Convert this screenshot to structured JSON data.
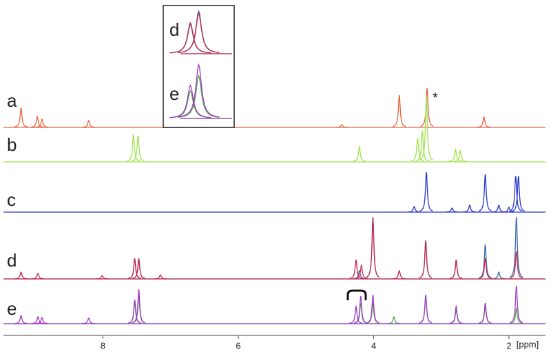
{
  "chart_data": {
    "type": "spectrum",
    "xlabel": "[ppm]",
    "xlim": [
      9.47,
      1.46
    ],
    "xticks": [
      8,
      6,
      4,
      2
    ],
    "annotation": "*",
    "series": [
      {
        "name": "a",
        "lines": [
          {
            "color": "#e8603c",
            "x": [
              9.21,
              8.97,
              8.9,
              8.21,
              4.47,
              3.62,
              3.21,
              2.37
            ],
            "values": [
              28,
              16,
              12,
              10,
              4,
              47,
              57,
              15
            ]
          }
        ]
      },
      {
        "name": "b",
        "lines": [
          {
            "color": "#9ee34a",
            "x": [
              7.55,
              7.48,
              4.21,
              3.35,
              3.28,
              3.22,
              2.79,
              2.72
            ],
            "values": [
              40,
              38,
              22,
              35,
              45,
              95,
              18,
              16
            ]
          }
        ]
      },
      {
        "name": "c",
        "lines": [
          {
            "color": "#2433c8",
            "x": [
              3.4,
              3.22,
              2.84,
              2.58,
              2.35,
              2.15,
              2.0,
              1.9,
              1.86
            ],
            "values": [
              8,
              58,
              6,
              10,
              55,
              10,
              7,
              52,
              52
            ]
          }
        ]
      },
      {
        "name": "d",
        "lines": [
          {
            "color": "#3868a8",
            "x": [
              7.53,
              7.47,
              4.21,
              4.01,
              3.23,
              2.78,
              2.35,
              2.15,
              1.89
            ],
            "values": [
              28,
              28,
              12,
              90,
              56,
              25,
              50,
              10,
              90
            ]
          },
          {
            "color": "#c8284a",
            "x": [
              9.21,
              8.96,
              8.01,
              7.53,
              7.47,
              7.15,
              4.26,
              4.18,
              4.01,
              3.62,
              3.23,
              2.78,
              2.35,
              1.89
            ],
            "values": [
              10,
              8,
              5,
              30,
              30,
              6,
              28,
              20,
              88,
              12,
              55,
              28,
              30,
              40
            ]
          }
        ]
      },
      {
        "name": "e",
        "lines": [
          {
            "color": "#50a848",
            "x": [
              7.53,
              7.47,
              4.19,
              4.01,
              3.7,
              3.23,
              2.78,
              2.35,
              1.89
            ],
            "values": [
              30,
              40,
              30,
              30,
              10,
              38,
              20,
              25,
              22
            ]
          },
          {
            "color": "#a038c8",
            "x": [
              9.21,
              8.96,
              8.9,
              8.21,
              7.53,
              7.47,
              4.26,
              4.19,
              4.01,
              3.23,
              2.78,
              2.35,
              1.89
            ],
            "values": [
              12,
              10,
              9,
              8,
              35,
              50,
              25,
              40,
              42,
              42,
              25,
              30,
              55
            ]
          }
        ]
      }
    ],
    "inset": {
      "xlim": [
        3.9,
        3.5
      ],
      "series": [
        {
          "name": "d",
          "lines": [
            {
              "color": "#3868a8",
              "x": [
                3.75,
                3.7
              ],
              "values": [
                42,
                62
              ]
            },
            {
              "color": "#c8284a",
              "x": [
                3.75,
                3.7
              ],
              "values": [
                45,
                58
              ]
            }
          ]
        },
        {
          "name": "e",
          "lines": [
            {
              "color": "#50a848",
              "x": [
                3.75,
                3.7
              ],
              "values": [
                40,
                62
              ]
            },
            {
              "color": "#a038c8",
              "x": [
                3.75,
                3.7
              ],
              "values": [
                48,
                78
              ]
            }
          ]
        }
      ]
    }
  }
}
